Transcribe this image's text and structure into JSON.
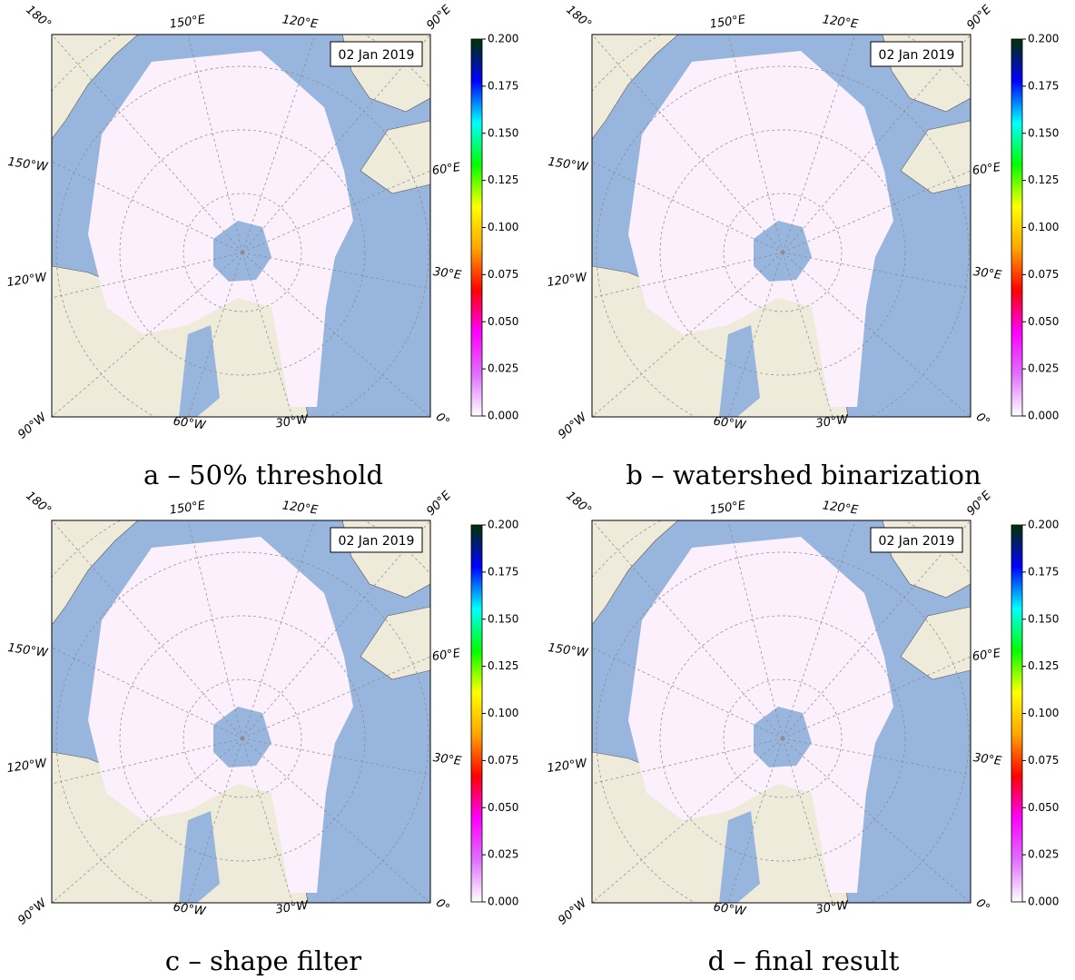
{
  "panels": [
    {
      "caption": "a – 50% threshold",
      "date": "02 Jan 2019"
    },
    {
      "caption": "b – watershed binarization",
      "date": "02 Jan 2019"
    },
    {
      "caption": "c – shape filter",
      "date": "02 Jan 2019"
    },
    {
      "caption": "d – final result",
      "date": "02 Jan 2019"
    }
  ],
  "longitude_labels": [
    "180°",
    "150°E",
    "120°E",
    "90°E",
    "150°W",
    "60°E",
    "120°W",
    "30°E",
    "90°W",
    "60°W",
    "30°W",
    "0°"
  ],
  "colorbar": {
    "ylim": [
      0,
      0.2
    ],
    "yticks": [
      {
        "value": 0,
        "label": "0.000"
      },
      {
        "value": 0.025,
        "label": "0.025"
      },
      {
        "value": 0.05,
        "label": "0.050"
      },
      {
        "value": 0.075,
        "label": "0.075"
      },
      {
        "value": 0.1,
        "label": "0.100"
      },
      {
        "value": 0.125,
        "label": "0.125"
      },
      {
        "value": 0.15,
        "label": "0.150"
      },
      {
        "value": 0.175,
        "label": "0.175"
      },
      {
        "value": 0.2,
        "label": "0.200"
      }
    ],
    "colormap": [
      "#ffffff",
      "#e070ff",
      "#ff00ff",
      "#ff0000",
      "#ffa500",
      "#ffff00",
      "#00ff00",
      "#00ffff",
      "#0000ff",
      "#003300"
    ]
  }
}
